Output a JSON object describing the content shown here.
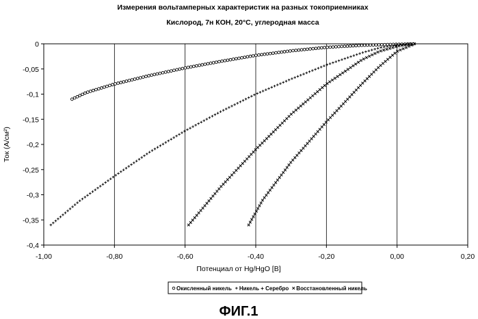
{
  "chart_data": {
    "type": "scatter",
    "title": "Измерения вольтамперных характеристик на разных токоприемниках",
    "subtitle": "Кислород, 7н КОН, 20°С, углеродная масса",
    "xlabel": "Потенциал от Hg/HgO [В]",
    "ylabel": "Ток (А/см²)",
    "xlim": [
      -1.0,
      0.2
    ],
    "ylim": [
      -0.4,
      0
    ],
    "x_ticks": [
      "-1,00",
      "-0,80",
      "-0,60",
      "-0,40",
      "-0,20",
      "0,00",
      "0,20"
    ],
    "x_tick_values": [
      -1.0,
      -0.8,
      -0.6,
      -0.4,
      -0.2,
      0.0,
      0.2
    ],
    "y_ticks": [
      "0",
      "-0,05",
      "-0,1",
      "-0,15",
      "-0,2",
      "-0,25",
      "-0,3",
      "-0,35",
      "-0,4"
    ],
    "y_tick_values": [
      0,
      -0.05,
      -0.1,
      -0.15,
      -0.2,
      -0.25,
      -0.3,
      -0.35,
      -0.4
    ],
    "grid": "vertical",
    "legend_position": "bottom",
    "series": [
      {
        "name": "Окисленный никель",
        "marker": "circle",
        "x": [
          -0.92,
          -0.88,
          -0.8,
          -0.7,
          -0.6,
          -0.5,
          -0.4,
          -0.3,
          -0.2,
          -0.1,
          -0.03,
          0.02,
          0.05
        ],
        "y": [
          -0.11,
          -0.097,
          -0.08,
          -0.063,
          -0.048,
          -0.035,
          -0.023,
          -0.014,
          -0.007,
          -0.003,
          -0.0015,
          -0.0007,
          0.0
        ]
      },
      {
        "name": "Никель + Серебро",
        "marker": "plus",
        "x": [
          -0.98,
          -0.9,
          -0.8,
          -0.7,
          -0.6,
          -0.5,
          -0.4,
          -0.3,
          -0.2,
          -0.1,
          -0.05,
          0.0,
          0.04
        ],
        "y": [
          -0.36,
          -0.313,
          -0.263,
          -0.215,
          -0.173,
          -0.135,
          -0.1,
          -0.07,
          -0.042,
          -0.018,
          -0.008,
          -0.002,
          0.0
        ]
      },
      {
        "name": "Восстановленный никель",
        "marker": "x",
        "x": [
          -0.59,
          -0.5,
          -0.4,
          -0.3,
          -0.2,
          -0.1,
          -0.05,
          0.0,
          0.03,
          0.05
        ],
        "y": [
          -0.36,
          -0.285,
          -0.21,
          -0.14,
          -0.08,
          -0.032,
          -0.015,
          -0.005,
          -0.001,
          0.0
        ]
      },
      {
        "name": "",
        "marker": "x",
        "x": [
          -0.42,
          -0.38,
          -0.3,
          -0.2,
          -0.1,
          -0.05,
          0.0,
          0.05
        ],
        "y": [
          -0.36,
          -0.31,
          -0.235,
          -0.155,
          -0.08,
          -0.045,
          -0.015,
          0.0
        ]
      }
    ]
  },
  "legend_separator": " ",
  "figure_label": "ФИГ.1"
}
